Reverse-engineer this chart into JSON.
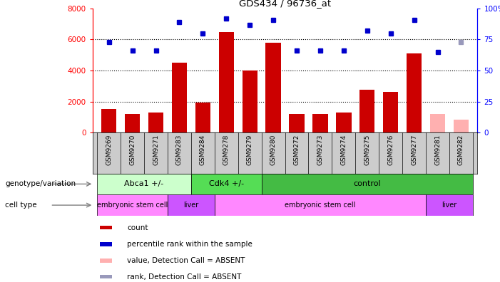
{
  "title": "GDS434 / 96736_at",
  "samples": [
    "GSM9269",
    "GSM9270",
    "GSM9271",
    "GSM9283",
    "GSM9284",
    "GSM9278",
    "GSM9279",
    "GSM9280",
    "GSM9272",
    "GSM9273",
    "GSM9274",
    "GSM9275",
    "GSM9276",
    "GSM9277",
    "GSM9281",
    "GSM9282"
  ],
  "counts": [
    1500,
    1200,
    1300,
    4500,
    1950,
    6500,
    4000,
    5800,
    1200,
    1200,
    1300,
    2750,
    2600,
    5100,
    1200,
    850
  ],
  "absent_count": [
    false,
    false,
    false,
    false,
    false,
    false,
    false,
    false,
    false,
    false,
    false,
    false,
    false,
    false,
    true,
    true
  ],
  "percentile_ranks": [
    73,
    66,
    66,
    89,
    80,
    92,
    87,
    91,
    66,
    66,
    66,
    82,
    80,
    91,
    65,
    73
  ],
  "absent_rank": [
    false,
    false,
    false,
    false,
    false,
    false,
    false,
    false,
    false,
    false,
    false,
    false,
    false,
    false,
    false,
    true
  ],
  "ylim_left": [
    0,
    8000
  ],
  "ylim_right": [
    0,
    100
  ],
  "yticks_left": [
    0,
    2000,
    4000,
    6000,
    8000
  ],
  "yticks_right": [
    0,
    25,
    50,
    75,
    100
  ],
  "ytick_labels_right": [
    "0",
    "25",
    "50",
    "75",
    "100%"
  ],
  "bar_color_red": "#cc0000",
  "bar_color_pink": "#ffb0b0",
  "dot_color_blue": "#0000cc",
  "dot_color_lightblue": "#9999bb",
  "background_color": "#ffffff",
  "plot_bg": "#ffffff",
  "xticklabel_bg": "#cccccc",
  "genotype_groups": [
    {
      "label": "Abca1 +/-",
      "start": 0,
      "end": 4,
      "color": "#ccffcc"
    },
    {
      "label": "Cdk4 +/-",
      "start": 4,
      "end": 7,
      "color": "#55dd55"
    },
    {
      "label": "control",
      "start": 7,
      "end": 16,
      "color": "#44bb44"
    }
  ],
  "celltype_groups": [
    {
      "label": "embryonic stem cell",
      "start": 0,
      "end": 3,
      "color": "#ff88ff"
    },
    {
      "label": "liver",
      "start": 3,
      "end": 5,
      "color": "#cc55ff"
    },
    {
      "label": "embryonic stem cell",
      "start": 5,
      "end": 14,
      "color": "#ff88ff"
    },
    {
      "label": "liver",
      "start": 14,
      "end": 16,
      "color": "#cc55ff"
    }
  ],
  "legend_items": [
    {
      "label": "count",
      "color": "#cc0000"
    },
    {
      "label": "percentile rank within the sample",
      "color": "#0000cc"
    },
    {
      "label": "value, Detection Call = ABSENT",
      "color": "#ffb0b0"
    },
    {
      "label": "rank, Detection Call = ABSENT",
      "color": "#9999bb"
    }
  ]
}
